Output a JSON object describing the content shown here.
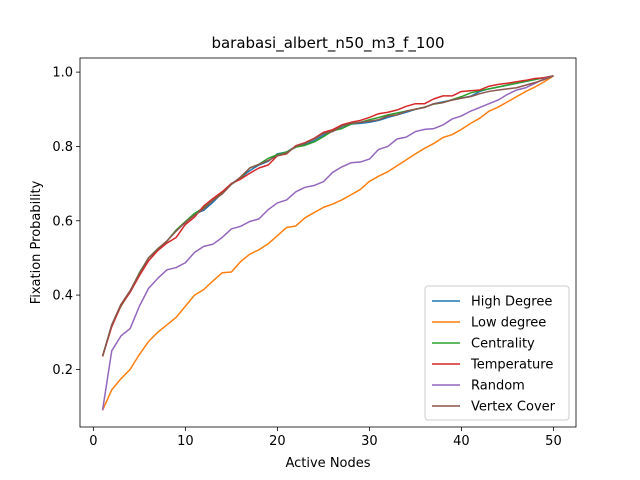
{
  "chart_data": {
    "type": "line",
    "title": "barabasi_albert_n50_m3_f_100",
    "xlabel": "Active Nodes",
    "ylabel": "Fixation Probability",
    "xlim": [
      -1.45,
      52.45
    ],
    "ylim": [
      0.045,
      1.038
    ],
    "xticks": [
      0,
      10,
      20,
      30,
      40,
      50
    ],
    "yticks": [
      0.2,
      0.4,
      0.6,
      0.8,
      1.0
    ],
    "xtick_labels": [
      "0",
      "10",
      "20",
      "30",
      "40",
      "50"
    ],
    "ytick_labels": [
      "0.2",
      "0.4",
      "0.6",
      "0.8",
      "1.0"
    ],
    "grid": false,
    "legend_position": "lower-right",
    "x": [
      1,
      2,
      3,
      4,
      5,
      6,
      7,
      8,
      9,
      10,
      11,
      12,
      13,
      14,
      15,
      16,
      17,
      18,
      19,
      20,
      21,
      22,
      23,
      24,
      25,
      26,
      27,
      28,
      29,
      30,
      31,
      32,
      33,
      34,
      35,
      36,
      37,
      38,
      39,
      40,
      41,
      42,
      43,
      44,
      45,
      46,
      47,
      48,
      49,
      50
    ],
    "series": [
      {
        "name": "High Degree",
        "color": "#1f77b4",
        "values": [
          0.235,
          0.32,
          0.372,
          0.408,
          0.455,
          0.5,
          0.52,
          0.545,
          0.575,
          0.595,
          0.618,
          0.628,
          0.65,
          0.675,
          0.7,
          0.715,
          0.735,
          0.75,
          0.76,
          0.78,
          0.785,
          0.8,
          0.805,
          0.815,
          0.83,
          0.845,
          0.85,
          0.86,
          0.862,
          0.865,
          0.87,
          0.878,
          0.885,
          0.892,
          0.9,
          0.905,
          0.915,
          0.92,
          0.925,
          0.93,
          0.935,
          0.948,
          0.955,
          0.96,
          0.965,
          0.97,
          0.975,
          0.98,
          0.985,
          0.99
        ]
      },
      {
        "name": "Low degree",
        "color": "#ff7f0e",
        "values": [
          0.09,
          0.145,
          0.175,
          0.2,
          0.24,
          0.275,
          0.3,
          0.32,
          0.34,
          0.37,
          0.4,
          0.415,
          0.438,
          0.46,
          0.462,
          0.49,
          0.51,
          0.522,
          0.538,
          0.56,
          0.582,
          0.586,
          0.608,
          0.622,
          0.636,
          0.645,
          0.656,
          0.67,
          0.684,
          0.706,
          0.72,
          0.732,
          0.748,
          0.764,
          0.78,
          0.795,
          0.808,
          0.824,
          0.832,
          0.846,
          0.862,
          0.876,
          0.895,
          0.906,
          0.92,
          0.934,
          0.948,
          0.96,
          0.974,
          0.99
        ]
      },
      {
        "name": "Centrality",
        "color": "#2ca02c",
        "values": [
          0.235,
          0.318,
          0.37,
          0.41,
          0.46,
          0.5,
          0.525,
          0.545,
          0.575,
          0.598,
          0.62,
          0.635,
          0.655,
          0.675,
          0.698,
          0.715,
          0.742,
          0.752,
          0.768,
          0.778,
          0.785,
          0.798,
          0.803,
          0.812,
          0.826,
          0.842,
          0.848,
          0.86,
          0.865,
          0.872,
          0.878,
          0.885,
          0.89,
          0.895,
          0.9,
          0.906,
          0.914,
          0.918,
          0.926,
          0.934,
          0.944,
          0.95,
          0.955,
          0.96,
          0.965,
          0.97,
          0.975,
          0.98,
          0.985,
          0.99
        ]
      },
      {
        "name": "Temperature",
        "color": "#d62728",
        "values": [
          0.235,
          0.315,
          0.372,
          0.408,
          0.452,
          0.492,
          0.52,
          0.54,
          0.555,
          0.59,
          0.61,
          0.64,
          0.66,
          0.678,
          0.7,
          0.712,
          0.728,
          0.742,
          0.75,
          0.775,
          0.78,
          0.802,
          0.81,
          0.822,
          0.838,
          0.845,
          0.858,
          0.865,
          0.87,
          0.878,
          0.888,
          0.892,
          0.898,
          0.908,
          0.915,
          0.915,
          0.928,
          0.936,
          0.936,
          0.948,
          0.95,
          0.952,
          0.962,
          0.967,
          0.97,
          0.974,
          0.978,
          0.983,
          0.985,
          0.99
        ]
      },
      {
        "name": "Random",
        "color": "#9467bd",
        "values": [
          0.09,
          0.25,
          0.29,
          0.31,
          0.37,
          0.418,
          0.445,
          0.468,
          0.474,
          0.487,
          0.515,
          0.531,
          0.537,
          0.555,
          0.578,
          0.585,
          0.598,
          0.605,
          0.63,
          0.648,
          0.656,
          0.678,
          0.69,
          0.695,
          0.705,
          0.73,
          0.745,
          0.756,
          0.758,
          0.766,
          0.792,
          0.8,
          0.82,
          0.825,
          0.84,
          0.846,
          0.848,
          0.858,
          0.874,
          0.882,
          0.895,
          0.905,
          0.915,
          0.925,
          0.94,
          0.952,
          0.958,
          0.97,
          0.982,
          0.99
        ]
      },
      {
        "name": "Vertex Cover",
        "color": "#8c564b",
        "values": [
          0.235,
          0.32,
          0.375,
          0.412,
          0.458,
          0.5,
          0.524,
          0.546,
          0.572,
          0.596,
          0.615,
          0.632,
          0.655,
          0.672,
          0.698,
          0.718,
          0.742,
          0.752,
          0.762,
          0.775,
          0.782,
          0.8,
          0.808,
          0.82,
          0.835,
          0.84,
          0.855,
          0.862,
          0.865,
          0.868,
          0.872,
          0.882,
          0.885,
          0.895,
          0.9,
          0.905,
          0.915,
          0.918,
          0.925,
          0.93,
          0.934,
          0.942,
          0.948,
          0.952,
          0.955,
          0.958,
          0.965,
          0.972,
          0.98,
          0.99
        ]
      }
    ]
  }
}
